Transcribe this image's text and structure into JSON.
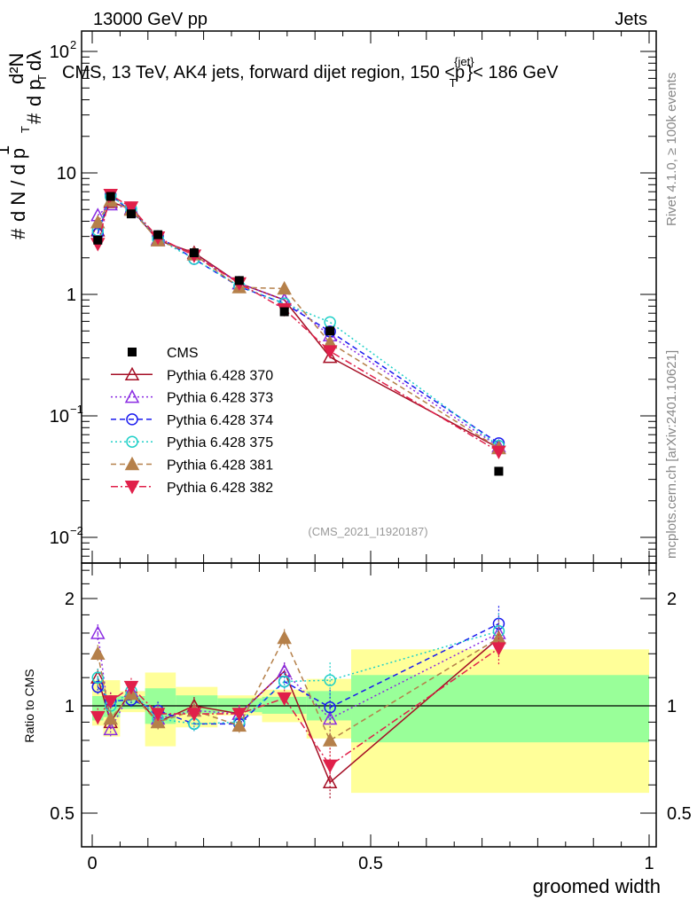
{
  "header": {
    "left": "13000 GeV pp",
    "right": "Jets"
  },
  "side_labels": {
    "rivet": "Rivet 4.1.0, ≥ 100k events",
    "mcplots": "mcplots.cern.ch [arXiv:2401.10621]"
  },
  "watermark": "(CMS_2021_I1920187)",
  "chart_data": {
    "type": "line",
    "title": "CMS, 13 TeV, AK4 jets, forward dijet region, 150 <p_T^{jet}< 186 GeV",
    "title_parts": {
      "pre": "CMS, 13 TeV, AK4 jets, forward dijet region, 150 <p",
      "sup": "{jet}",
      "sub": "T",
      "post": "}< 186 GeV"
    },
    "xlabel": "groomed width",
    "ylabel": "1/dN/dp_T  dN/dp_T dλ",
    "ylabel_parts": {
      "a": "1",
      "b": "d N / d p",
      "c": "T",
      "d": "d²N",
      "e": "d p",
      "f": "T",
      "g": "dλ",
      "h": "#",
      "i": "#"
    },
    "ratio_ylabel": "Ratio to CMS",
    "xlim": [
      0,
      1
    ],
    "ylim": [
      0.0062,
      148
    ],
    "yscale": "log",
    "ratio_ylim": [
      0.4,
      2.5
    ],
    "x_ticks": [
      "0",
      "0.5",
      "1"
    ],
    "y_ticks": [
      {
        "v": 100,
        "base": "10",
        "exp": "2"
      },
      {
        "v": 10,
        "base": "10",
        "exp": ""
      },
      {
        "v": 1,
        "base": "1",
        "exp": ""
      },
      {
        "v": 0.1,
        "base": "10",
        "exp": "−1"
      },
      {
        "v": 0.01,
        "base": "10",
        "exp": "−2"
      }
    ],
    "ratio_ticks": [
      "2",
      "1",
      "0.5"
    ],
    "bin_edges": [
      0,
      0.02,
      0.05,
      0.095,
      0.15,
      0.225,
      0.305,
      0.385,
      0.465,
      1.0
    ],
    "x": [
      0.01,
      0.033,
      0.07,
      0.118,
      0.183,
      0.264,
      0.345,
      0.427,
      0.73
    ],
    "data": {
      "name": "CMS",
      "values": [
        2.8,
        6.4,
        4.6,
        3.1,
        2.2,
        1.3,
        0.72,
        0.5,
        0.035
      ]
    },
    "band_total": [
      [
        0.88,
        1.18
      ],
      [
        0.82,
        1.18
      ],
      [
        0.96,
        1.1
      ],
      [
        0.77,
        1.24
      ],
      [
        0.87,
        1.13
      ],
      [
        0.94,
        1.07
      ],
      [
        0.9,
        1.11
      ],
      [
        0.81,
        1.19
      ],
      [
        0.57,
        1.44
      ]
    ],
    "band_stat": [
      [
        0.91,
        1.065
      ],
      [
        0.93,
        1.07
      ],
      [
        0.98,
        1.065
      ],
      [
        0.89,
        1.12
      ],
      [
        0.95,
        1.07
      ],
      [
        0.96,
        1.05
      ],
      [
        0.95,
        1.06
      ],
      [
        0.91,
        1.1
      ],
      [
        0.79,
        1.22
      ]
    ],
    "series": [
      {
        "name": "Pythia 6.428 370",
        "color": "#a50f25",
        "dash": "",
        "marker": "tri-up-open",
        "ratio": [
          1.2,
          0.9,
          1.1,
          0.9,
          1.0,
          0.95,
          1.25,
          0.61,
          1.55
        ]
      },
      {
        "name": "Pythia 6.428 373",
        "color": "#8a2be2",
        "dash": "2,3",
        "marker": "tri-up-open",
        "ratio": [
          1.6,
          0.86,
          1.1,
          0.92,
          0.97,
          0.95,
          1.25,
          0.92,
          1.6
        ]
      },
      {
        "name": "Pythia 6.428 374",
        "color": "#1a1aef",
        "dash": "6,4",
        "marker": "circle-open",
        "ratio": [
          1.13,
          1.03,
          1.04,
          0.97,
          0.89,
          0.89,
          1.17,
          0.99,
          1.7
        ]
      },
      {
        "name": "Pythia 6.428 375",
        "color": "#20d0c8",
        "dash": "2,3",
        "marker": "circle-open",
        "ratio": [
          1.2,
          1.0,
          1.1,
          0.92,
          0.89,
          0.9,
          1.17,
          1.18,
          1.62
        ]
      },
      {
        "name": "Pythia 6.428 381",
        "color": "#b5804a",
        "dash": "6,4",
        "marker": "tri-up-filled",
        "ratio": [
          1.4,
          0.92,
          1.08,
          0.9,
          0.97,
          0.88,
          1.55,
          0.8,
          1.55
        ]
      },
      {
        "name": "Pythia 6.428 382",
        "color": "#e0204a",
        "dash": "8,3,2,3",
        "marker": "tri-down-filled",
        "ratio": [
          0.93,
          1.03,
          1.13,
          0.95,
          0.95,
          0.95,
          1.05,
          0.68,
          1.45
        ]
      }
    ],
    "legend_placement": "middle-left",
    "colors": {
      "band_total": "#ffff99",
      "band_stat": "#99ff99"
    }
  }
}
